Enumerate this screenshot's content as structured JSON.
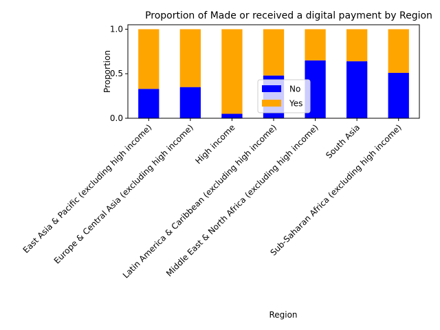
{
  "chart_data": {
    "type": "bar",
    "stacked": true,
    "title": "Proportion of Made or received a digital payment by Region",
    "xlabel": "Region",
    "ylabel": "Proportion",
    "ylim": [
      0,
      1.05
    ],
    "yticks": [
      "0.0",
      "0.5",
      "1.0"
    ],
    "grid": false,
    "legend_position": "center-right",
    "categories": [
      "East Asia & Pacific (excluding high income)",
      "Europe & Central Asia (excluding high income)",
      "High income",
      "Latin America & Caribbean (excluding high income)",
      "Middle East & North Africa (excluding high income)",
      "South Asia",
      "Sub-Saharan Africa (excluding high income)"
    ],
    "series": [
      {
        "name": "No",
        "color": "#0000ff",
        "values": [
          0.33,
          0.35,
          0.05,
          0.48,
          0.65,
          0.64,
          0.51
        ]
      },
      {
        "name": "Yes",
        "color": "#ffa500",
        "values": [
          0.67,
          0.65,
          0.95,
          0.52,
          0.35,
          0.36,
          0.49
        ]
      }
    ]
  }
}
